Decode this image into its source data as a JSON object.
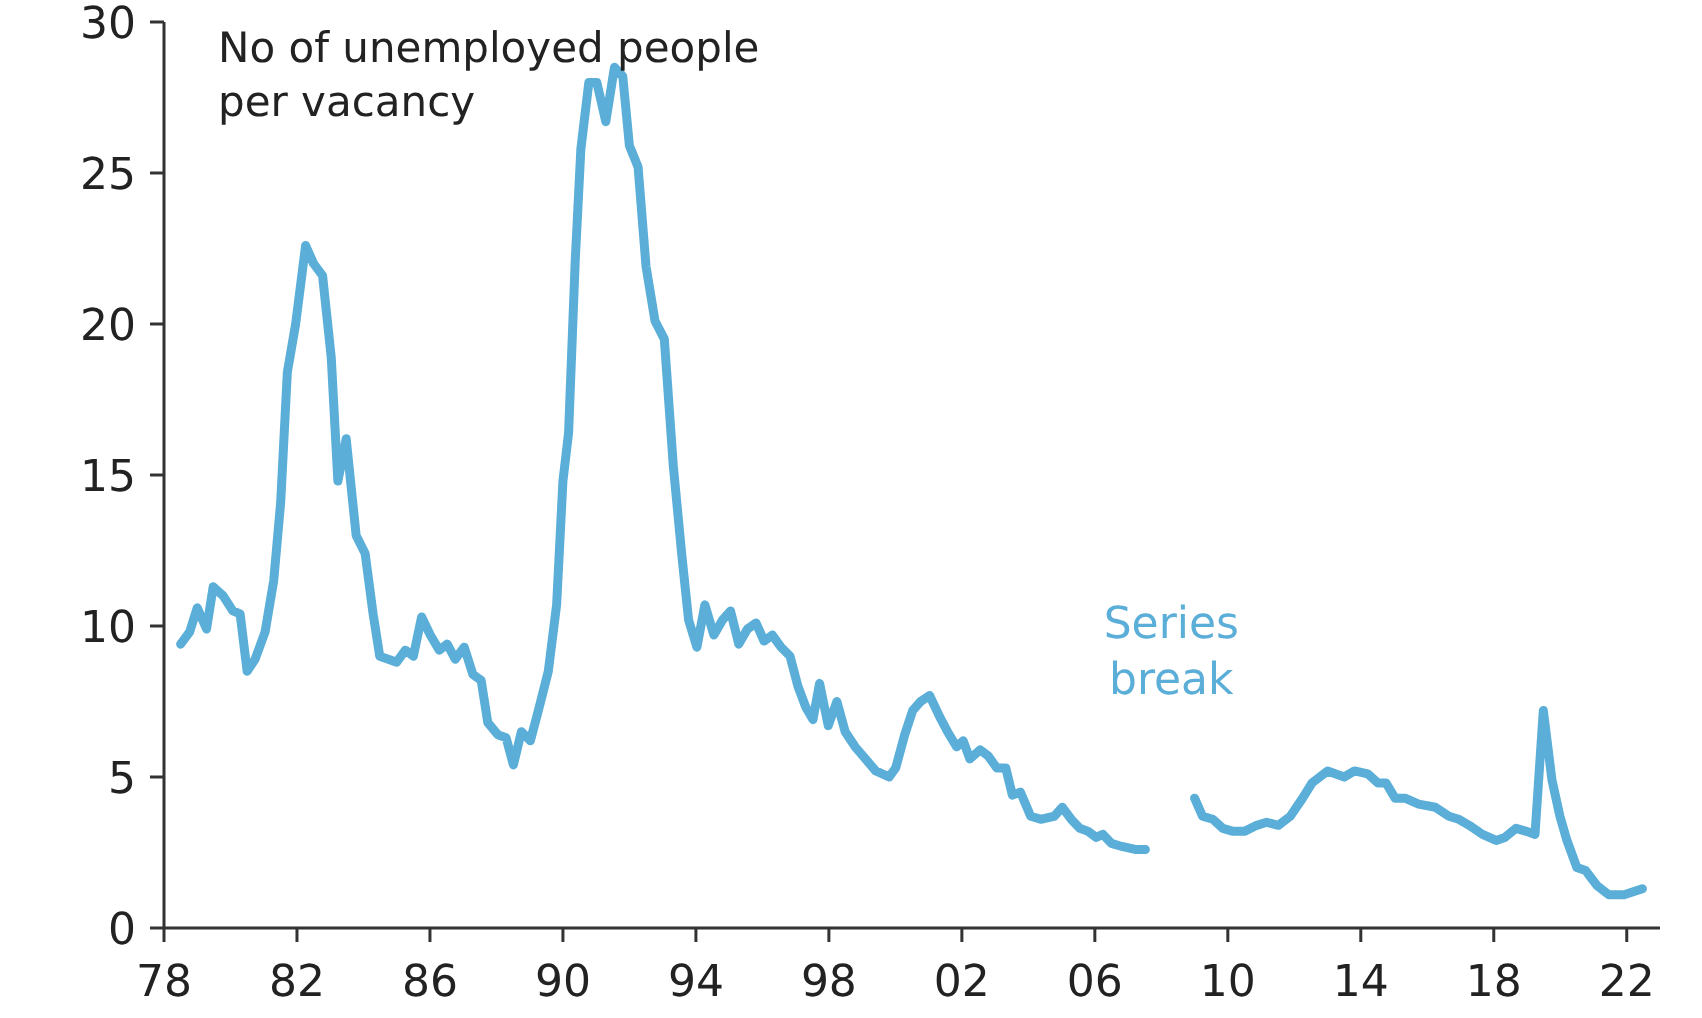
{
  "chart_data": {
    "type": "line",
    "title": "No of unemployed people per vacancy",
    "x": [
      1978.5,
      1978.77,
      1979.0,
      1979.28,
      1979.48,
      1979.78,
      1980.07,
      1980.29,
      1980.5,
      1980.74,
      1981.04,
      1981.3,
      1981.51,
      1981.71,
      1981.96,
      1982.26,
      1982.5,
      1982.77,
      1983.03,
      1983.23,
      1983.48,
      1983.78,
      1984.05,
      1984.29,
      1984.49,
      1985.0,
      1985.26,
      1985.5,
      1985.75,
      1986.01,
      1986.28,
      1986.52,
      1986.76,
      1987.03,
      1987.29,
      1987.54,
      1987.74,
      1988.04,
      1988.29,
      1988.51,
      1988.75,
      1989.02,
      1989.26,
      1989.56,
      1989.81,
      1990.0,
      1990.17,
      1990.37,
      1990.54,
      1990.78,
      1991.02,
      1991.29,
      1991.55,
      1991.8,
      1992.0,
      1992.26,
      1992.5,
      1992.77,
      1993.05,
      1993.32,
      1993.58,
      1993.78,
      1994.03,
      1994.27,
      1994.54,
      1994.8,
      1995.04,
      1995.29,
      1995.55,
      1995.81,
      1996.05,
      1996.3,
      1996.56,
      1996.83,
      1997.07,
      1997.31,
      1997.52,
      1997.72,
      1997.98,
      1998.24,
      1998.49,
      1998.79,
      1999.1,
      1999.41,
      1999.81,
      2000.01,
      2000.28,
      2000.52,
      2000.76,
      2001.03,
      2001.33,
      2001.57,
      2001.84,
      2002.04,
      2002.24,
      2002.55,
      2002.79,
      2003.05,
      2003.32,
      2003.52,
      2003.76,
      2004.07,
      2004.37,
      2004.78,
      2005.02,
      2005.29,
      2005.55,
      2005.8,
      2006.04,
      2006.24,
      2006.5,
      2006.81,
      2007.21,
      2007.52,
      2008.3,
      2009.0,
      2009.24,
      2009.55,
      2009.85,
      2010.16,
      2010.5,
      2010.87,
      2011.17,
      2011.52,
      2011.88,
      2012.25,
      2012.53,
      2013.0,
      2013.5,
      2013.81,
      2014.21,
      2014.52,
      2014.76,
      2015.03,
      2015.33,
      2015.74,
      2016.24,
      2016.65,
      2016.95,
      2017.26,
      2017.66,
      2018.07,
      2018.33,
      2018.67,
      2018.98,
      2019.24,
      2019.49,
      2019.75,
      2019.99,
      2020.2,
      2020.5,
      2020.76,
      2021.11,
      2021.46,
      2021.92,
      2022.47
    ],
    "series": [
      {
        "color": "#5aaed8",
        "values": [
          9.4,
          9.8,
          10.6,
          9.9,
          11.3,
          11.0,
          10.5,
          10.4,
          8.5,
          8.9,
          9.8,
          11.5,
          14.1,
          18.4,
          20.0,
          22.6,
          22.0,
          21.6,
          18.9,
          14.8,
          16.2,
          13.0,
          12.4,
          10.4,
          9.0,
          8.8,
          9.2,
          9.0,
          10.3,
          9.7,
          9.2,
          9.4,
          8.9,
          9.3,
          8.4,
          8.2,
          6.8,
          6.4,
          6.3,
          5.4,
          6.5,
          6.2,
          7.2,
          8.5,
          10.7,
          14.8,
          16.4,
          22.1,
          25.8,
          28.0,
          28.0,
          26.7,
          28.5,
          28.2,
          25.9,
          25.2,
          21.9,
          20.1,
          19.5,
          15.3,
          12.3,
          10.2,
          9.3,
          10.7,
          9.7,
          10.2,
          10.5,
          9.4,
          9.9,
          10.1,
          9.5,
          9.7,
          9.3,
          9.0,
          8.0,
          7.3,
          6.9,
          8.1,
          6.7,
          7.5,
          6.5,
          6.0,
          5.6,
          5.2,
          5.0,
          5.3,
          6.4,
          7.2,
          7.5,
          7.7,
          7.0,
          6.5,
          6.0,
          6.2,
          5.6,
          5.9,
          5.7,
          5.3,
          5.3,
          4.4,
          4.5,
          3.7,
          3.6,
          3.7,
          4.0,
          3.6,
          3.3,
          3.2,
          3.0,
          3.1,
          2.8,
          2.7,
          2.6,
          2.6,
          null,
          4.3,
          3.7,
          3.6,
          3.3,
          3.2,
          3.2,
          3.4,
          3.5,
          3.4,
          3.7,
          4.3,
          4.8,
          5.2,
          5.0,
          5.2,
          5.1,
          4.8,
          4.8,
          4.3,
          4.3,
          4.1,
          4.0,
          3.7,
          3.6,
          3.4,
          3.1,
          2.9,
          3.0,
          3.3,
          3.2,
          3.1,
          7.2,
          4.9,
          3.7,
          2.9,
          2.0,
          1.9,
          1.4,
          1.1,
          1.1,
          1.3
        ]
      }
    ],
    "annotations": [
      "Series break"
    ],
    "xlim": [
      1978,
      2023
    ],
    "xticks": [
      {
        "value": 1978,
        "label": "78"
      },
      {
        "value": 1982,
        "label": "82"
      },
      {
        "value": 1986,
        "label": "86"
      },
      {
        "value": 1990,
        "label": "90"
      },
      {
        "value": 1994,
        "label": "94"
      },
      {
        "value": 1998,
        "label": "98"
      },
      {
        "value": 2002,
        "label": "02"
      },
      {
        "value": 2006,
        "label": "06"
      },
      {
        "value": 2010,
        "label": "10"
      },
      {
        "value": 2014,
        "label": "14"
      },
      {
        "value": 2018,
        "label": "18"
      },
      {
        "value": 2022,
        "label": "22"
      }
    ],
    "ylim": [
      0,
      30
    ],
    "yticks": [
      0,
      5,
      10,
      15,
      20,
      25,
      30
    ],
    "grid": false,
    "marker": "none",
    "line_style": "solid"
  }
}
